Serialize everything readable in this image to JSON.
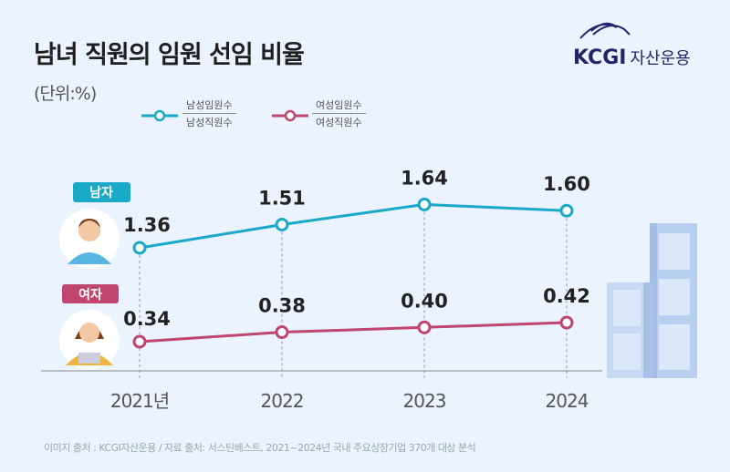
{
  "title": "남녀 직원의 임원 선임 비율",
  "unit": "(단위:%)",
  "logo": {
    "brand": "KCGI",
    "sub": "자산운용"
  },
  "footer": "이미지 출처 : KCGI자산운용 / 자료 출처: 서스틴베스트, 2021~2024년 국내 주요상장기업 370개 대상 분석",
  "colors": {
    "male": "#1aa9c6",
    "female": "#c0466f",
    "background": "#eaf3fe"
  },
  "chart_data": {
    "type": "line",
    "categories": [
      "2021년",
      "2022",
      "2023",
      "2024"
    ],
    "series": [
      {
        "name": "남자",
        "legend_numerator": "남성임원수",
        "legend_denominator": "남성직원수",
        "values": [
          1.36,
          1.51,
          1.64,
          1.6
        ],
        "labels": [
          "1.36",
          "1.51",
          "1.64",
          "1.60"
        ]
      },
      {
        "name": "여자",
        "legend_numerator": "여성임원수",
        "legend_denominator": "여성직원수",
        "values": [
          0.34,
          0.38,
          0.4,
          0.42
        ],
        "labels": [
          "0.34",
          "0.38",
          "0.40",
          "0.42"
        ]
      }
    ],
    "grid": false
  }
}
